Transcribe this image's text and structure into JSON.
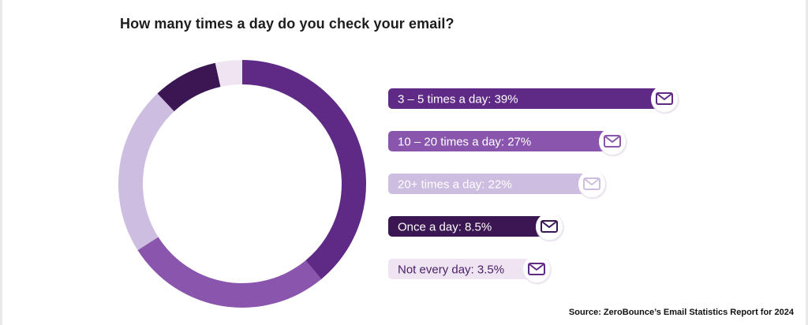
{
  "chart_data": {
    "type": "pie",
    "title": "How many times a day do you check your email?",
    "categories": [
      "3 – 5 times a day",
      "10 – 20 times a day",
      "20+ times a day",
      "Once a day",
      "Not every day"
    ],
    "values": [
      39,
      27,
      22,
      8.5,
      3.5
    ],
    "unit": "%",
    "legend": [
      "3 – 5 times a day: 39%",
      "10 – 20 times a day: 27%",
      "20+ times a day: 22%",
      "Once a day: 8.5%",
      "Not every day: 3.5%"
    ],
    "colors": [
      "#5f2a86",
      "#8a56ad",
      "#cdbde0",
      "#3a1652",
      "#efe5f2"
    ],
    "label_colors": [
      "#ffffff",
      "#ffffff",
      "#ffffff",
      "#ffffff",
      "#4a2068"
    ],
    "icon": "envelope-icon",
    "source": "Source: ZeroBounce’s Email Statistics Report for 2024"
  }
}
